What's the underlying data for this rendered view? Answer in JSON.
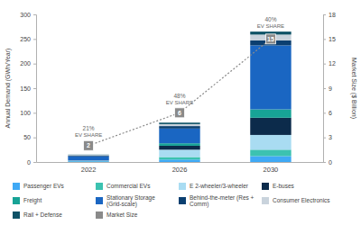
{
  "chart_data": {
    "type": "bar",
    "stacked": true,
    "categories": [
      "2022",
      "2026",
      "2030"
    ],
    "y_label": "Annual Demand (GWh/Year)",
    "y2_label": "Market Size ($ Billion)",
    "ylim": [
      0,
      300
    ],
    "yticks": [
      0,
      50,
      100,
      150,
      200,
      250,
      300
    ],
    "y2lim": [
      0,
      18
    ],
    "y2ticks": [
      0,
      3,
      6,
      9,
      12,
      15,
      18
    ],
    "grid": false,
    "legend": "bottom",
    "annotations": [
      {
        "text": "21%",
        "subtext": "EV SHARE"
      },
      {
        "text": "48%",
        "subtext": "EV SHARE"
      },
      {
        "text": "40%",
        "subtext": "EV SHARE"
      }
    ],
    "series": [
      {
        "name": "Passenger EVs",
        "color": "#3fa9f5",
        "type": "bar",
        "values": [
          1.5,
          5,
          12
        ]
      },
      {
        "name": "Commercial EVs",
        "color": "#3cc2b0",
        "type": "bar",
        "values": [
          0.3,
          5,
          13
        ]
      },
      {
        "name": "E 2-wheeler/3-wheeler",
        "color": "#a9dcf2",
        "type": "bar",
        "values": [
          1,
          15,
          30
        ]
      },
      {
        "name": "E-buses",
        "color": "#0c2b4b",
        "type": "bar",
        "values": [
          0.2,
          8,
          35
        ]
      },
      {
        "name": "Freight",
        "color": "#17a396",
        "type": "bar",
        "values": [
          0.1,
          5,
          17
        ]
      },
      {
        "name": "Stationary Storage (Grid-scale)",
        "color": "#1a66c2",
        "type": "bar",
        "values": [
          8.5,
          30,
          130
        ]
      },
      {
        "name": "Behind-the-meter (Res + Comm)",
        "color": "#0b3f70",
        "type": "bar",
        "values": [
          1.2,
          5,
          10
        ]
      },
      {
        "name": "Consumer Electronics",
        "color": "#c9d3dc",
        "type": "bar",
        "values": [
          1.5,
          4,
          12
        ]
      },
      {
        "name": "Rail + Defense",
        "color": "#0e5266",
        "type": "bar",
        "values": [
          0.7,
          3,
          6
        ]
      },
      {
        "name": "Market Size",
        "color": "#8a8a8a",
        "type": "line",
        "axis": "y2",
        "line_style": "dotted",
        "marker": "square",
        "data_labels": true,
        "values": [
          2,
          6,
          15
        ]
      }
    ]
  }
}
